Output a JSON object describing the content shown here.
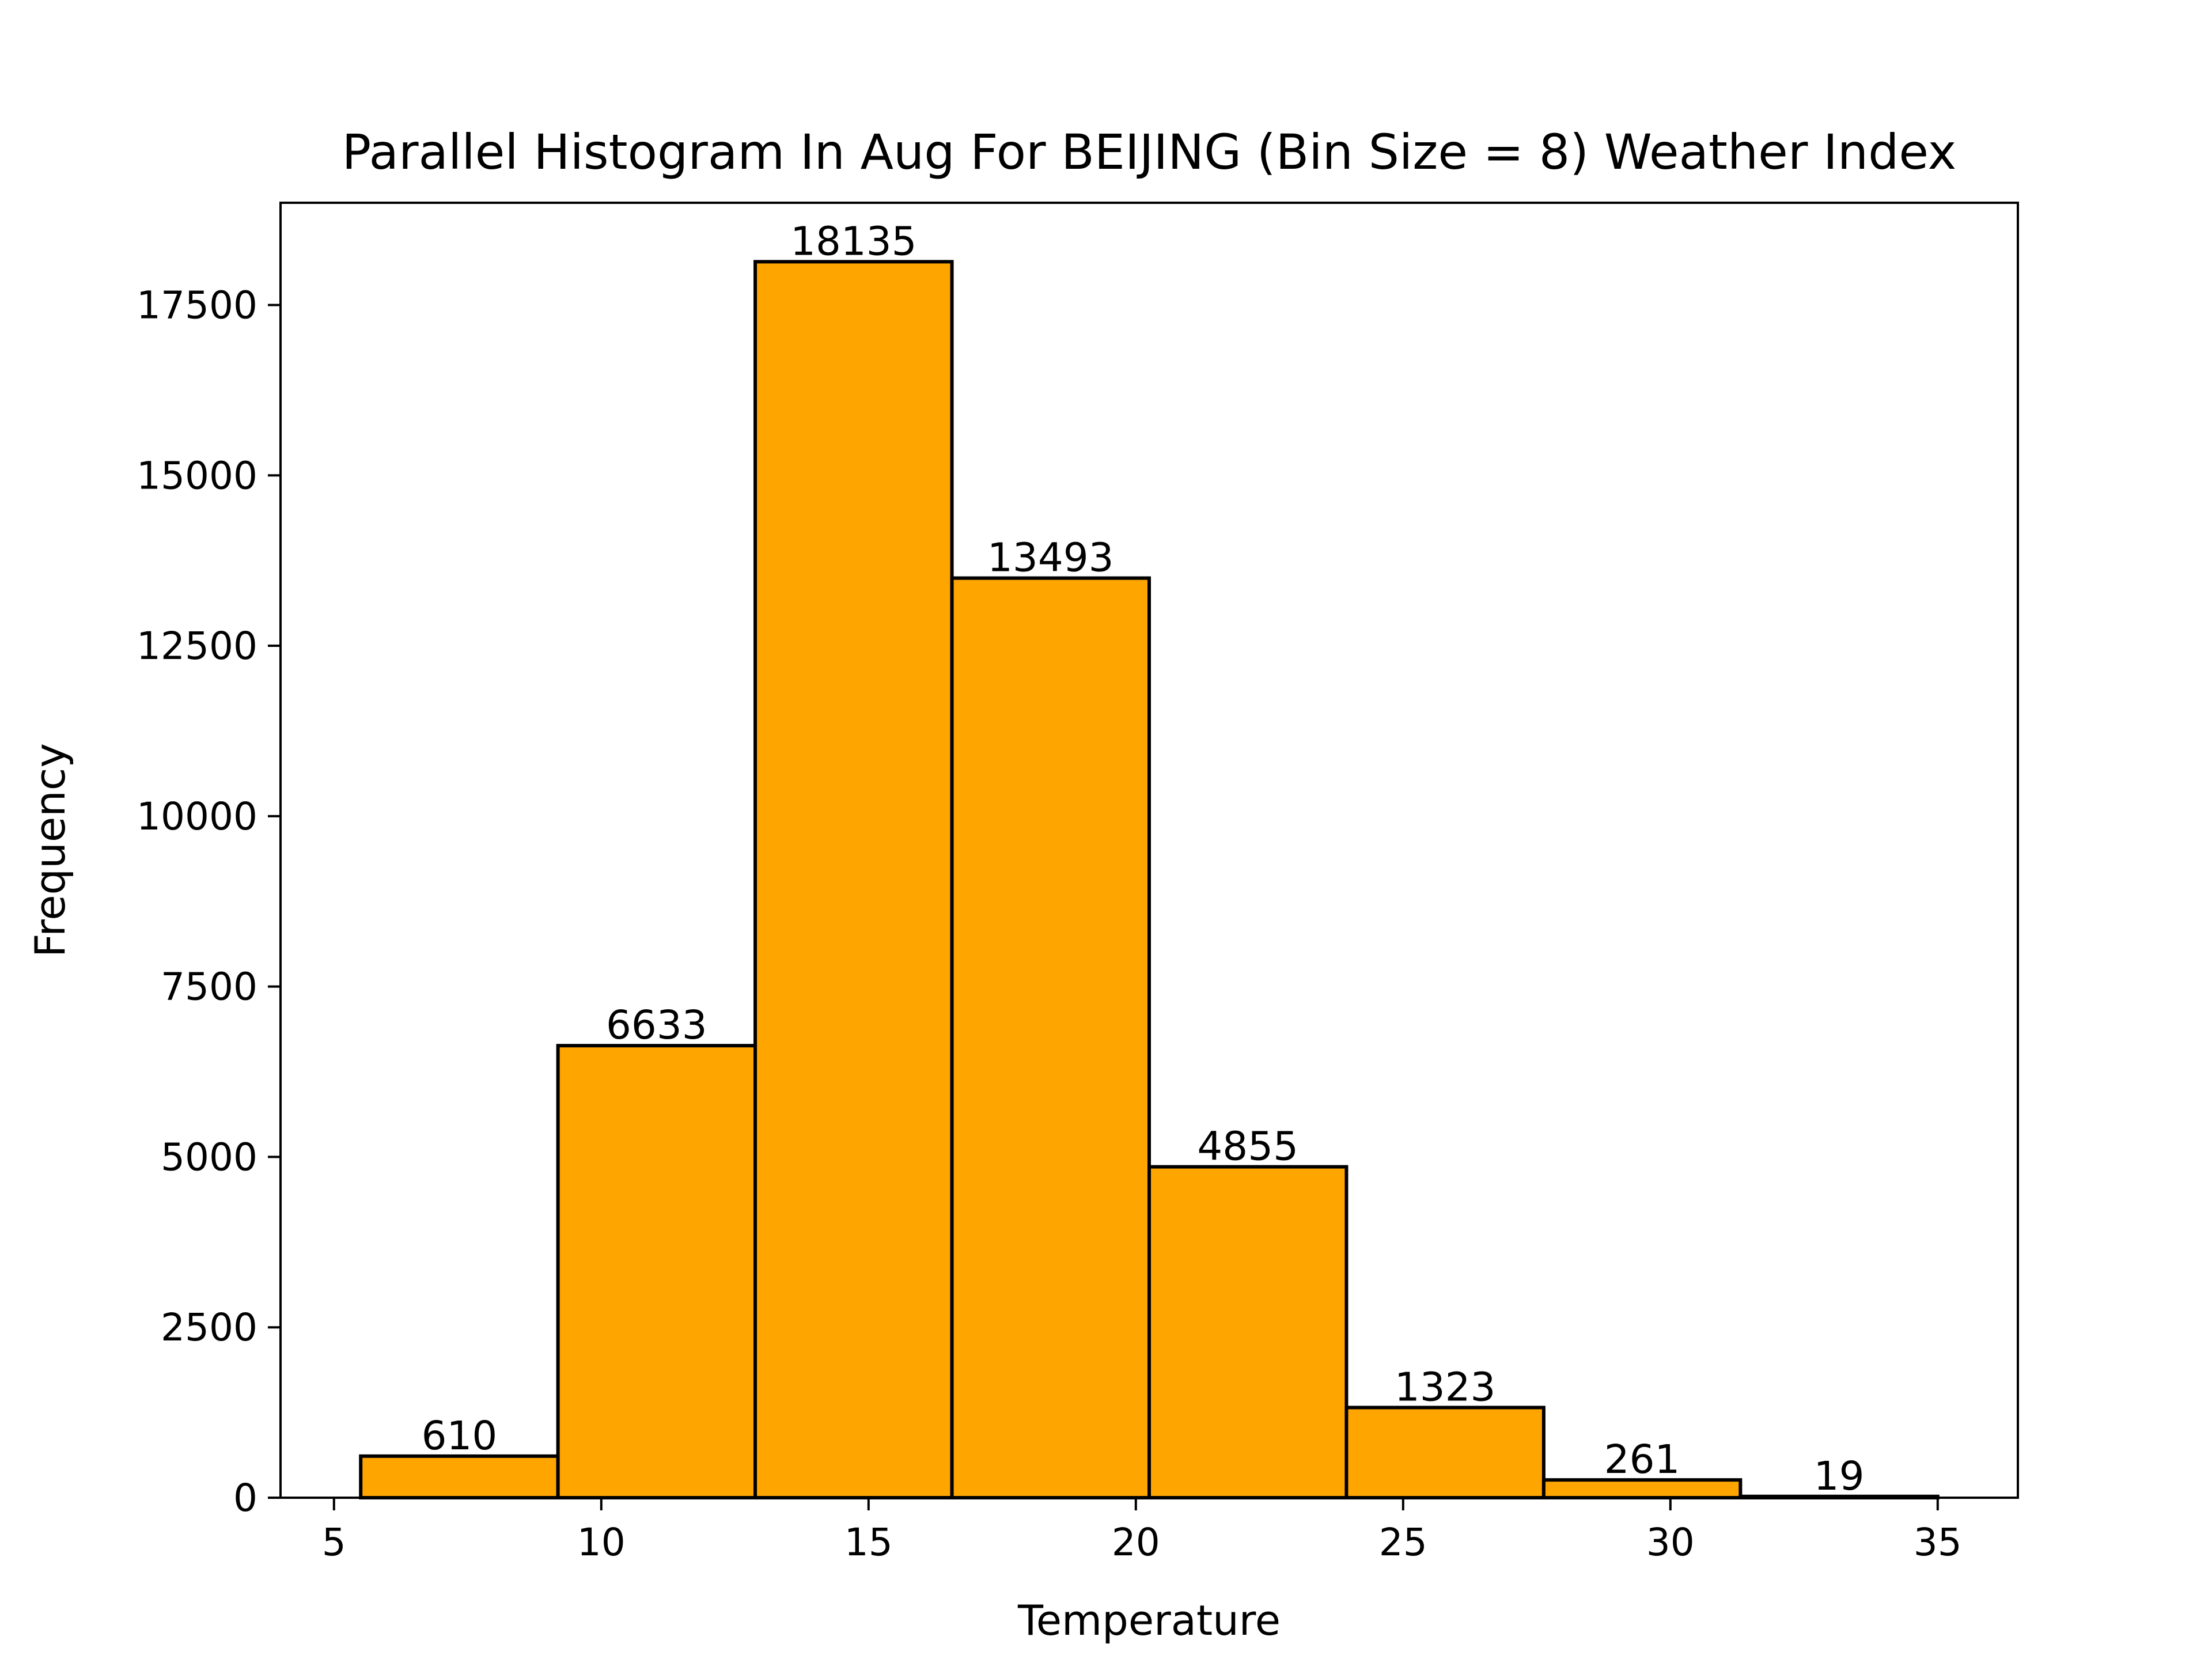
{
  "chart_data": {
    "type": "bar",
    "title": "Parallel Histogram In Aug For BEIJING (Bin Size = 8) Weather Index",
    "xlabel": "Temperature",
    "ylabel": "Frequency",
    "bin_edges": [
      5.5,
      9.19,
      12.88,
      16.56,
      20.25,
      23.94,
      27.63,
      31.31,
      35.0
    ],
    "values": [
      610,
      6633,
      18135,
      13493,
      4855,
      1323,
      261,
      19
    ],
    "data_labels": [
      "610",
      "6633",
      "18135",
      "13493",
      "4855",
      "1323",
      "261",
      "19"
    ],
    "xlim": [
      4.0,
      36.5
    ],
    "ylim": [
      0,
      19000
    ],
    "xticks": [
      5,
      10,
      15,
      20,
      25,
      30,
      35
    ],
    "xtick_labels": [
      "5",
      "10",
      "15",
      "20",
      "25",
      "30",
      "35"
    ],
    "yticks": [
      0,
      2500,
      5000,
      7500,
      10000,
      12500,
      15000,
      17500
    ],
    "ytick_labels": [
      "0",
      "2500",
      "5000",
      "7500",
      "10000",
      "12500",
      "15000",
      "17500"
    ],
    "bar_color": "#FFA500",
    "edge_color": "#000000",
    "grid": false,
    "legend": "none"
  }
}
